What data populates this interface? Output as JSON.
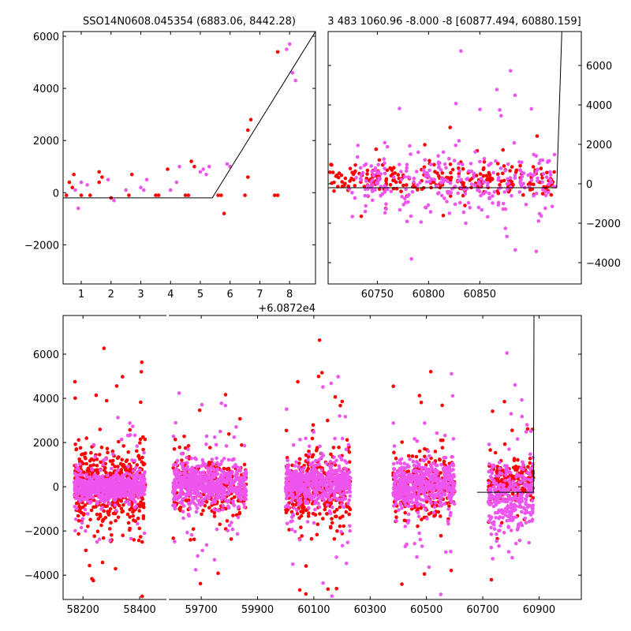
{
  "chart_data": [
    {
      "type": "scatter",
      "title": "SSO14N0608.045354 (6883.06, 8442.28)",
      "x_offset_label": "+6.0872e4",
      "xlim": [
        0.39,
        8.87
      ],
      "ylim": [
        -3500,
        6180
      ],
      "xticks": [
        "1",
        "2",
        "3",
        "4",
        "5",
        "6",
        "7",
        "8"
      ],
      "yticks": [
        "-2000",
        "0",
        "2000",
        "4000",
        "6000"
      ],
      "series": [
        {
          "name": "red",
          "color": "#ff0000",
          "points": [
            [
              0.5,
              -100
            ],
            [
              0.6,
              400
            ],
            [
              0.7,
              200
            ],
            [
              0.75,
              700
            ],
            [
              1.0,
              -100
            ],
            [
              1.3,
              -100
            ],
            [
              1.6,
              800
            ],
            [
              1.6,
              400
            ],
            [
              1.7,
              600
            ],
            [
              2.0,
              -200
            ],
            [
              2.6,
              -100
            ],
            [
              2.7,
              700
            ],
            [
              3.5,
              -100
            ],
            [
              3.6,
              -100
            ],
            [
              3.9,
              900
            ],
            [
              4.5,
              -100
            ],
            [
              4.6,
              -100
            ],
            [
              4.7,
              1200
            ],
            [
              4.8,
              1000
            ],
            [
              5.6,
              -100
            ],
            [
              5.7,
              -100
            ],
            [
              5.8,
              -800
            ],
            [
              6.5,
              -100
            ],
            [
              6.6,
              600
            ],
            [
              6.6,
              2400
            ],
            [
              6.7,
              2800
            ],
            [
              7.5,
              -100
            ],
            [
              7.6,
              -100
            ],
            [
              7.6,
              5400
            ]
          ]
        },
        {
          "name": "magenta",
          "color": "#ee55ee",
          "points": [
            [
              0.8,
              100
            ],
            [
              0.9,
              -600
            ],
            [
              1.0,
              400
            ],
            [
              1.2,
              300
            ],
            [
              1.9,
              500
            ],
            [
              2.1,
              -300
            ],
            [
              2.5,
              100
            ],
            [
              3.0,
              200
            ],
            [
              3.1,
              100
            ],
            [
              3.2,
              500
            ],
            [
              4.0,
              100
            ],
            [
              4.2,
              400
            ],
            [
              4.3,
              1000
            ],
            [
              5.0,
              800
            ],
            [
              5.1,
              900
            ],
            [
              5.2,
              700
            ],
            [
              5.3,
              1000
            ],
            [
              5.9,
              1100
            ],
            [
              6.0,
              1000
            ],
            [
              7.9,
              5500
            ],
            [
              8.0,
              5700
            ],
            [
              8.1,
              4600
            ],
            [
              8.2,
              4300
            ]
          ]
        }
      ],
      "model_line": [
        [
          0.39,
          -200
        ],
        [
          5.4,
          -200
        ],
        [
          8.87,
          6180
        ]
      ]
    },
    {
      "type": "scatter",
      "title": "3 483 1060.96 -8.000 -8 [60877.494, 60880.159]",
      "xlim": [
        60702,
        60949
      ],
      "ylim": [
        -5080,
        7720
      ],
      "xticks": [
        "60750",
        "60800",
        "60850"
      ],
      "yticks": [
        "-4000",
        "-2000",
        "0",
        "2000",
        "4000",
        "6000"
      ],
      "y_axis_side": "right",
      "clusters": [
        {
          "series": "red",
          "color": "#ff0000",
          "x_range": [
            60702,
            60925
          ],
          "y_center": 250,
          "y_spread": 600,
          "count": 260
        },
        {
          "series": "magenta",
          "color": "#ee55ee",
          "x_range": [
            60722,
            60925
          ],
          "y_center": 0,
          "y_spread": 1300,
          "count": 300
        }
      ],
      "model_line": [
        [
          60702,
          -200
        ],
        [
          60925,
          -200
        ],
        [
          60930,
          7720
        ]
      ]
    },
    {
      "type": "scatter",
      "broken_x_axis": true,
      "xlim_left": [
        58130,
        58497
      ],
      "xlim_right": [
        59582,
        61050
      ],
      "ylim": [
        -5100,
        7750
      ],
      "xticks_left": [
        "58200",
        "58400"
      ],
      "xticks_right": [
        "59700",
        "59900",
        "60100",
        "60300",
        "60500",
        "60700",
        "60900"
      ],
      "yticks": [
        "-4000",
        "-2000",
        "0",
        "2000",
        "4000",
        "6000"
      ],
      "clusters": [
        {
          "series": "red",
          "color": "#ff0000",
          "x_range": [
            58170,
            58420
          ],
          "y_center": 0,
          "y_spread": 1500,
          "count": 500
        },
        {
          "series": "magenta",
          "color": "#ee55ee",
          "x_range": [
            58170,
            58420
          ],
          "y_center": 0,
          "y_spread": 500,
          "count": 700
        },
        {
          "series": "red",
          "color": "#ff0000",
          "x_range": [
            59600,
            59860
          ],
          "y_center": 0,
          "y_spread": 1200,
          "count": 300
        },
        {
          "series": "magenta",
          "color": "#ee55ee",
          "x_range": [
            59600,
            59860
          ],
          "y_center": 100,
          "y_spread": 800,
          "count": 600
        },
        {
          "series": "red",
          "color": "#ff0000",
          "x_range": [
            60000,
            60230
          ],
          "y_center": 0,
          "y_spread": 1300,
          "count": 350
        },
        {
          "series": "magenta",
          "color": "#ee55ee",
          "x_range": [
            60000,
            60230
          ],
          "y_center": 150,
          "y_spread": 700,
          "count": 600
        },
        {
          "series": "red",
          "color": "#ff0000",
          "x_range": [
            60380,
            60600
          ],
          "y_center": 0,
          "y_spread": 1200,
          "count": 250
        },
        {
          "series": "magenta",
          "color": "#ee55ee",
          "x_range": [
            60380,
            60600
          ],
          "y_center": 100,
          "y_spread": 800,
          "count": 550
        },
        {
          "series": "red",
          "color": "#ff0000",
          "x_range": [
            60720,
            60880
          ],
          "y_center": 300,
          "y_spread": 900,
          "count": 200
        },
        {
          "series": "magenta",
          "color": "#ee55ee",
          "x_range": [
            60720,
            60880
          ],
          "y_center": -500,
          "y_spread": 1300,
          "count": 300
        }
      ],
      "model_line": [
        [
          60680,
          -250
        ],
        [
          60880,
          -250
        ],
        [
          60882,
          7750
        ]
      ]
    }
  ]
}
